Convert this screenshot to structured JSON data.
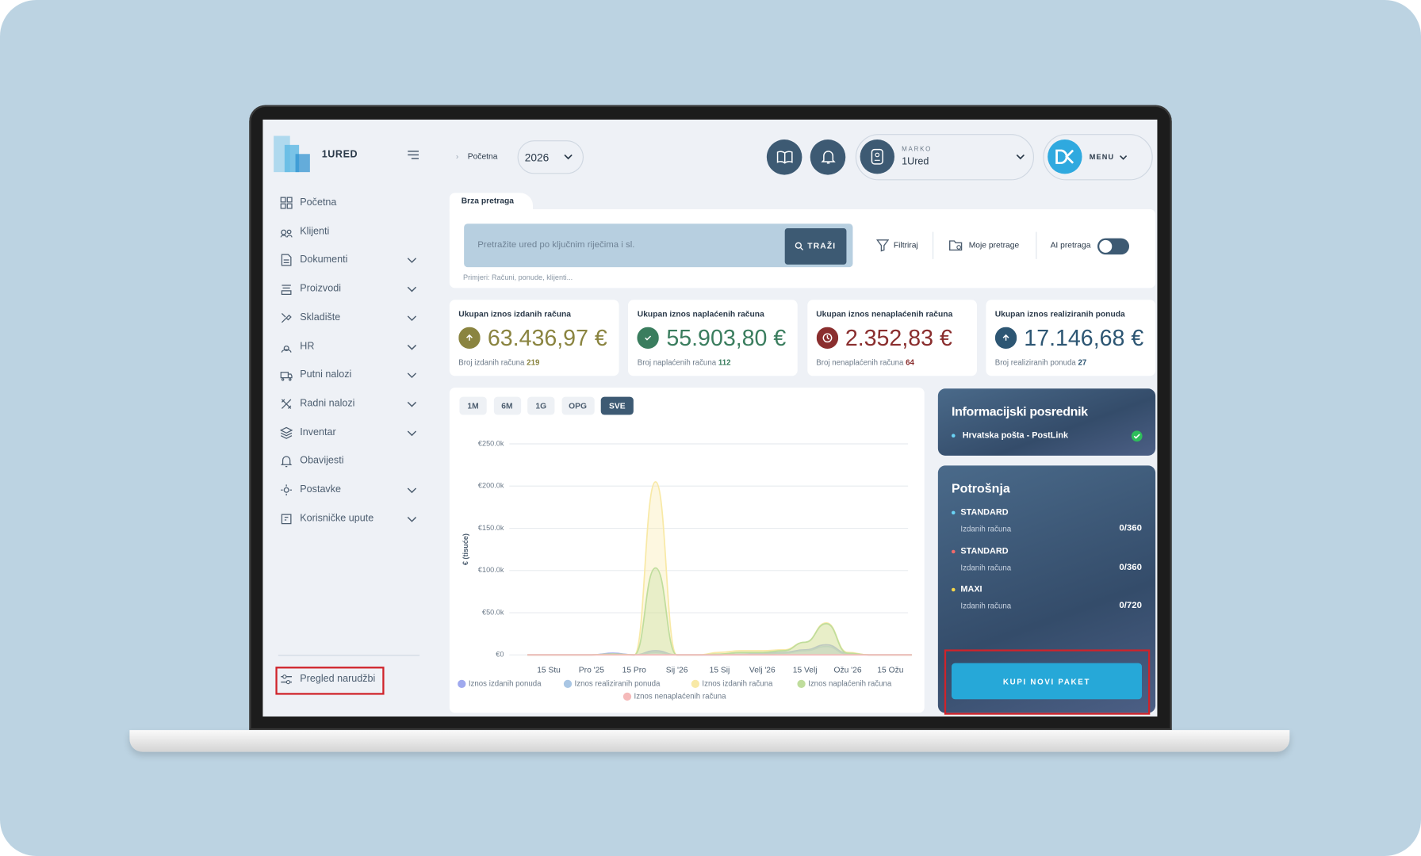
{
  "sidebar": {
    "brand": "1URED",
    "nav": [
      {
        "label": "Početna",
        "expandable": false
      },
      {
        "label": "Klijenti",
        "expandable": false
      },
      {
        "label": "Dokumenti",
        "expandable": true
      },
      {
        "label": "Proizvodi",
        "expandable": true
      },
      {
        "label": "Skladište",
        "expandable": true
      },
      {
        "label": "HR",
        "expandable": true
      },
      {
        "label": "Putni nalozi",
        "expandable": true
      },
      {
        "label": "Radni nalozi",
        "expandable": true
      },
      {
        "label": "Inventar",
        "expandable": true
      },
      {
        "label": "Obavijesti",
        "expandable": false
      },
      {
        "label": "Postavke",
        "expandable": true
      },
      {
        "label": "Korisničke upute",
        "expandable": true
      }
    ],
    "footer_link": "Pregled narudžbi"
  },
  "header": {
    "breadcrumb": "Početna",
    "year": "2026",
    "user": {
      "caption": "MARKO",
      "name": "1Ured"
    },
    "menu": "MENU"
  },
  "search": {
    "tab": "Brza pretraga",
    "placeholder": "Pretražite ured po ključnim riječima i sl.",
    "button": "TRAŽI",
    "hint": "Primjeri: Računi, ponude, klijenti...",
    "filter": "Filtriraj",
    "saved": "Moje pretrage",
    "ai": "AI pretraga"
  },
  "stats": [
    {
      "title": "Ukupan iznos izdanih računa",
      "value": "63.436,97 €",
      "caption": "Broj izdanih računa",
      "count": 219,
      "color": "#8a8440"
    },
    {
      "title": "Ukupan iznos naplaćenih računa",
      "value": "55.903,80 €",
      "caption": "Broj naplaćenih računa",
      "count": 112,
      "color": "#3a7d5e"
    },
    {
      "title": "Ukupan iznos nenaplaćenih računa",
      "value": "2.352,83 €",
      "caption": "Broj nenaplaćenih računa",
      "count": 64,
      "color": "#8a2e2e"
    },
    {
      "title": "Ukupan iznos realiziranih ponuda",
      "value": "17.146,68 €",
      "caption": "Broj realiziranih ponuda",
      "count": 27,
      "color": "#2d5673"
    }
  ],
  "chart": {
    "type": "area",
    "ranges": [
      "1M",
      "6M",
      "1G",
      "OPG",
      "SVE"
    ],
    "y_label": "€ (tisuće)",
    "ylim": [
      0,
      250
    ],
    "yticks": [
      {
        "value": 0,
        "label": "€0"
      },
      {
        "value": 50,
        "label": "€50.0k"
      },
      {
        "value": 100,
        "label": "€100.0k"
      },
      {
        "value": 150,
        "label": "€150.0k"
      },
      {
        "value": 200,
        "label": "€200.0k"
      },
      {
        "value": 250,
        "label": "€250.0k"
      }
    ],
    "categories": [
      null,
      "15 Stu",
      null,
      "Pro '25",
      null,
      "15 Pro",
      null,
      "Sij '26",
      null,
      "15 Sij",
      null,
      "Velj '26",
      null,
      "15 Velj",
      null,
      "Ožu '26",
      null,
      "15 Ožu",
      null
    ],
    "series": [
      {
        "name": "Iznos izdanih ponuda",
        "color": "#9fa9ee",
        "values": [
          0,
          0,
          0,
          0,
          2,
          0,
          5,
          0,
          0,
          0,
          1,
          2,
          3,
          6,
          12,
          2,
          0,
          0,
          0
        ]
      },
      {
        "name": "Iznos realiziranih ponuda",
        "color": "#a9c6e4",
        "values": [
          0,
          0,
          0,
          0,
          1,
          0,
          3,
          0,
          0,
          0,
          1,
          1,
          2,
          5,
          10,
          1,
          0,
          0,
          0
        ]
      },
      {
        "name": "Iznos izdanih računa",
        "color": "#f8e9a6",
        "values": [
          0,
          0,
          0,
          0,
          1,
          0,
          205,
          0,
          0,
          3,
          5,
          5,
          6,
          15,
          38,
          3,
          0,
          0,
          0
        ]
      },
      {
        "name": "Iznos naplaćenih računa",
        "color": "#bfdd9c",
        "values": [
          0,
          0,
          0,
          0,
          1,
          0,
          103,
          0,
          0,
          1,
          3,
          3,
          5,
          15,
          37,
          2,
          0,
          0,
          0
        ]
      },
      {
        "name": "Iznos nenaplaćenih računa",
        "color": "#f5baba",
        "values": [
          0,
          0,
          0,
          0,
          0,
          0,
          0,
          0,
          0,
          0,
          0,
          0,
          0,
          0,
          0,
          0,
          0,
          0,
          0
        ]
      }
    ]
  },
  "intermediary": {
    "title": "Informacijski posrednik",
    "item": "Hrvatska pošta - PostLink"
  },
  "usage": {
    "title": "Potrošnja",
    "plans": [
      {
        "name": "STANDARD",
        "color": "#6ad3f5",
        "caption": "Izdanih računa",
        "usage": "0/360"
      },
      {
        "name": "STANDARD",
        "color": "#f06a6a",
        "caption": "Izdanih računa",
        "usage": "0/360"
      },
      {
        "name": "MAXI",
        "color": "#f5d64a",
        "caption": "Izdanih računa",
        "usage": "0/720"
      }
    ],
    "button": "KUPI NOVI PAKET"
  }
}
